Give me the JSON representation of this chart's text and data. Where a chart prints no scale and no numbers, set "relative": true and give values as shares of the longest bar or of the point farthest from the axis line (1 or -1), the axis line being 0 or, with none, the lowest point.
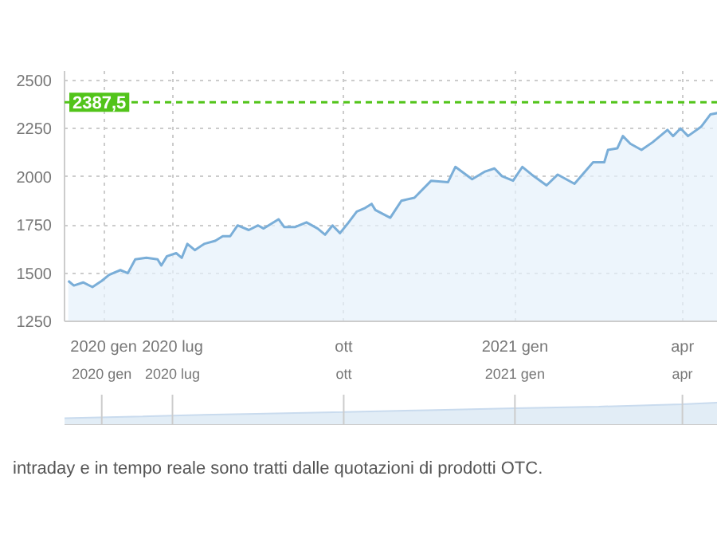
{
  "chart_data": [
    {
      "type": "area",
      "x": [
        "2020-05-06",
        "2020-05-09",
        "2020-05-14",
        "2020-05-19",
        "2020-05-24",
        "2020-05-28",
        "2020-06-03",
        "2020-06-07",
        "2020-06-11",
        "2020-06-17",
        "2020-06-23",
        "2020-06-25",
        "2020-06-28",
        "2020-07-03",
        "2020-07-06",
        "2020-07-09",
        "2020-07-13",
        "2020-07-18",
        "2020-07-24",
        "2020-07-28",
        "2020-08-01",
        "2020-08-05",
        "2020-08-11",
        "2020-08-16",
        "2020-08-19",
        "2020-08-27",
        "2020-08-30",
        "2020-09-05",
        "2020-09-11",
        "2020-09-17",
        "2020-09-21",
        "2020-09-25",
        "2020-09-29",
        "2020-10-03",
        "2020-10-08",
        "2020-10-12",
        "2020-10-16",
        "2020-10-18",
        "2020-10-26",
        "2020-11-01",
        "2020-11-08",
        "2020-11-17",
        "2020-11-26",
        "2020-11-30",
        "2020-12-09",
        "2020-12-16",
        "2020-12-21",
        "2020-12-25",
        "2020-12-31",
        "2021-01-05",
        "2021-01-10",
        "2021-01-18",
        "2021-01-24",
        "2021-02-02",
        "2021-02-12",
        "2021-02-18",
        "2021-02-20",
        "2021-02-25",
        "2021-02-28",
        "2021-03-04",
        "2021-03-10",
        "2021-03-16",
        "2021-03-24",
        "2021-03-27",
        "2021-03-31",
        "2021-04-04",
        "2021-04-11",
        "2021-04-16",
        "2021-04-20"
      ],
      "series": [
        {
          "color": "#7aaed8",
          "values": [
            1460,
            1436,
            1452,
            1428,
            1460,
            1492,
            1516,
            1500,
            1572,
            1580,
            1572,
            1540,
            1588,
            1604,
            1580,
            1652,
            1620,
            1652,
            1668,
            1692,
            1692,
            1748,
            1724,
            1748,
            1732,
            1780,
            1740,
            1740,
            1764,
            1732,
            1700,
            1748,
            1708,
            1756,
            1820,
            1836,
            1860,
            1828,
            1788,
            1876,
            1892,
            1980,
            1972,
            2052,
            1988,
            2028,
            2044,
            2004,
            1980,
            2052,
            2012,
            1956,
            2012,
            1964,
            2076,
            2076,
            2140,
            2148,
            2212,
            2172,
            2140,
            2180,
            2244,
            2212,
            2252,
            2212,
            2260,
            2324,
            2332
          ]
        }
      ],
      "xlim": [
        "2020-05-04",
        "2021-04-20"
      ],
      "xticks": [
        {
          "value": "2020-05-25",
          "label": "2020 gen"
        },
        {
          "value": "2020-07-01",
          "label": "2020 lug"
        },
        {
          "value": "2020-10-01",
          "label": "ott"
        },
        {
          "value": "2021-01-01",
          "label": "2021 gen"
        },
        {
          "value": "2021-04-01",
          "label": "apr"
        }
      ],
      "ylim": [
        1250,
        2550
      ],
      "yticks": [
        1250,
        1500,
        1750,
        2000,
        2250,
        2500
      ],
      "grid": true,
      "ref_lines": [
        {
          "axis": "y",
          "value": 2387.5,
          "label": "2387,5",
          "color": "#52c41a",
          "line_style": "dashed"
        }
      ]
    },
    {
      "type": "area",
      "relative": true,
      "x": [
        "2020-05-04",
        "2020-06-15",
        "2020-07-01",
        "2020-08-15",
        "2020-10-01",
        "2020-11-15",
        "2021-01-01",
        "2021-02-15",
        "2021-04-01",
        "2021-04-20"
      ],
      "series": [
        {
          "color": "#dbe8f4",
          "values": [
            0.3,
            0.38,
            0.42,
            0.5,
            0.58,
            0.66,
            0.75,
            0.82,
            0.92,
            1
          ]
        }
      ],
      "xlim": [
        "2020-05-04",
        "2021-04-20"
      ],
      "xticks": [
        {
          "value": "2020-05-24",
          "label": "2020 gen"
        },
        {
          "value": "2020-07-01",
          "label": "2020 lug"
        },
        {
          "value": "2020-10-01",
          "label": "ott"
        },
        {
          "value": "2021-01-01",
          "label": "2021 gen"
        },
        {
          "value": "2021-04-01",
          "label": "apr"
        }
      ],
      "grid": "x",
      "annotations": [
        "intraday e in tempo reale sono tratti dalle quotazioni di prodotti OTC."
      ]
    }
  ]
}
